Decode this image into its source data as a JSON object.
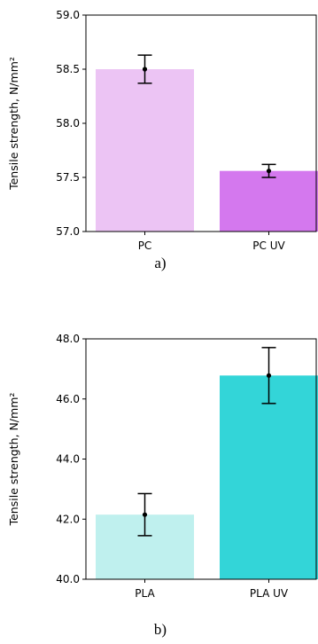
{
  "chart_data": [
    {
      "type": "bar",
      "categories": [
        "PC",
        "PC UV"
      ],
      "values": [
        58.5,
        57.56
      ],
      "errors": [
        0.13,
        0.06
      ],
      "colors": [
        "#ecc4f4",
        "#d478ee"
      ],
      "ylabel": "Tensile strength, N/mm²",
      "ylim": [
        57.0,
        59.0
      ],
      "yticks": [
        "57.0",
        "57.5",
        "58.0",
        "58.5",
        "59.0"
      ],
      "caption": "a)"
    },
    {
      "type": "bar",
      "categories": [
        "PLA",
        "PLA UV"
      ],
      "values": [
        42.15,
        46.78
      ],
      "errors": [
        0.7,
        0.93
      ],
      "colors": [
        "#bff0ee",
        "#33d5d8"
      ],
      "ylabel": "Tensile strength, N/mm²",
      "ylim": [
        40.0,
        48.0
      ],
      "yticks": [
        "40.0",
        "42.0",
        "44.0",
        "46.0",
        "48.0"
      ],
      "caption": "b)"
    }
  ]
}
